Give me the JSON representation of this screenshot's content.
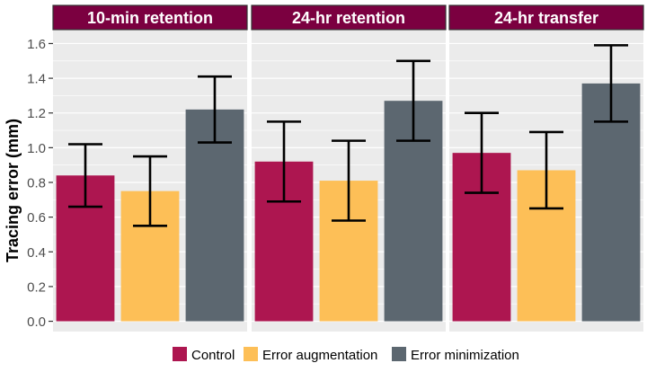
{
  "chart_data": {
    "type": "bar",
    "ylabel": "Tracing error (mm)",
    "ylim": [
      -0.08,
      1.68
    ],
    "yticks": [
      0.0,
      0.2,
      0.4,
      0.6,
      0.8,
      1.0,
      1.2,
      1.4,
      1.6
    ],
    "ytick_labels": [
      "0.0",
      "0.2",
      "0.4",
      "0.6",
      "0.8",
      "1.0",
      "1.2",
      "1.4",
      "1.6"
    ],
    "grid": true,
    "legend_position": "bottom",
    "facets": [
      {
        "title": "10-min retention",
        "series": [
          {
            "name": "Control",
            "value": 0.84,
            "err_low": 0.66,
            "err_high": 1.02
          },
          {
            "name": "Error augmentation",
            "value": 0.75,
            "err_low": 0.55,
            "err_high": 0.95
          },
          {
            "name": "Error minimization",
            "value": 1.22,
            "err_low": 1.03,
            "err_high": 1.41
          }
        ]
      },
      {
        "title": "24-hr retention",
        "series": [
          {
            "name": "Control",
            "value": 0.92,
            "err_low": 0.69,
            "err_high": 1.15
          },
          {
            "name": "Error augmentation",
            "value": 0.81,
            "err_low": 0.58,
            "err_high": 1.04
          },
          {
            "name": "Error minimization",
            "value": 1.27,
            "err_low": 1.04,
            "err_high": 1.5
          }
        ]
      },
      {
        "title": "24-hr transfer",
        "series": [
          {
            "name": "Control",
            "value": 0.97,
            "err_low": 0.74,
            "err_high": 1.2
          },
          {
            "name": "Error augmentation",
            "value": 0.87,
            "err_low": 0.65,
            "err_high": 1.09
          },
          {
            "name": "Error minimization",
            "value": 1.37,
            "err_low": 1.15,
            "err_high": 1.59
          }
        ]
      }
    ],
    "legend": [
      {
        "name": "Control",
        "color": "#ad1650"
      },
      {
        "name": "Error augmentation",
        "color": "#fdbf57"
      },
      {
        "name": "Error minimization",
        "color": "#5c6770"
      }
    ],
    "colors": {
      "strip_background": "#7b0040",
      "panel_background": "#ebebeb",
      "grid": "#ffffff"
    }
  }
}
